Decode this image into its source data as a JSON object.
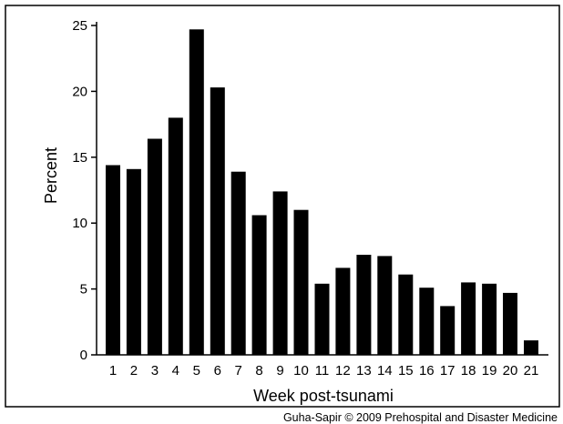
{
  "chart_data": {
    "type": "bar",
    "title": "",
    "xlabel": "Week post-tsunami",
    "ylabel": "Percent",
    "ylim": [
      0,
      25
    ],
    "yticks": [
      0,
      5,
      10,
      15,
      20,
      25
    ],
    "grid": false,
    "categories": [
      "1",
      "2",
      "3",
      "4",
      "5",
      "6",
      "7",
      "8",
      "9",
      "10",
      "11",
      "12",
      "13",
      "14",
      "15",
      "16",
      "17",
      "18",
      "19",
      "20",
      "21"
    ],
    "values": [
      14.4,
      14.1,
      16.4,
      18.0,
      24.7,
      20.3,
      13.9,
      10.6,
      12.4,
      11.0,
      5.4,
      6.6,
      7.6,
      7.5,
      6.1,
      5.1,
      3.7,
      5.5,
      5.4,
      4.7,
      1.1
    ],
    "bar_color": "#000000"
  },
  "credit": "Guha-Sapir © 2009 Prehospital and Disaster Medicine"
}
